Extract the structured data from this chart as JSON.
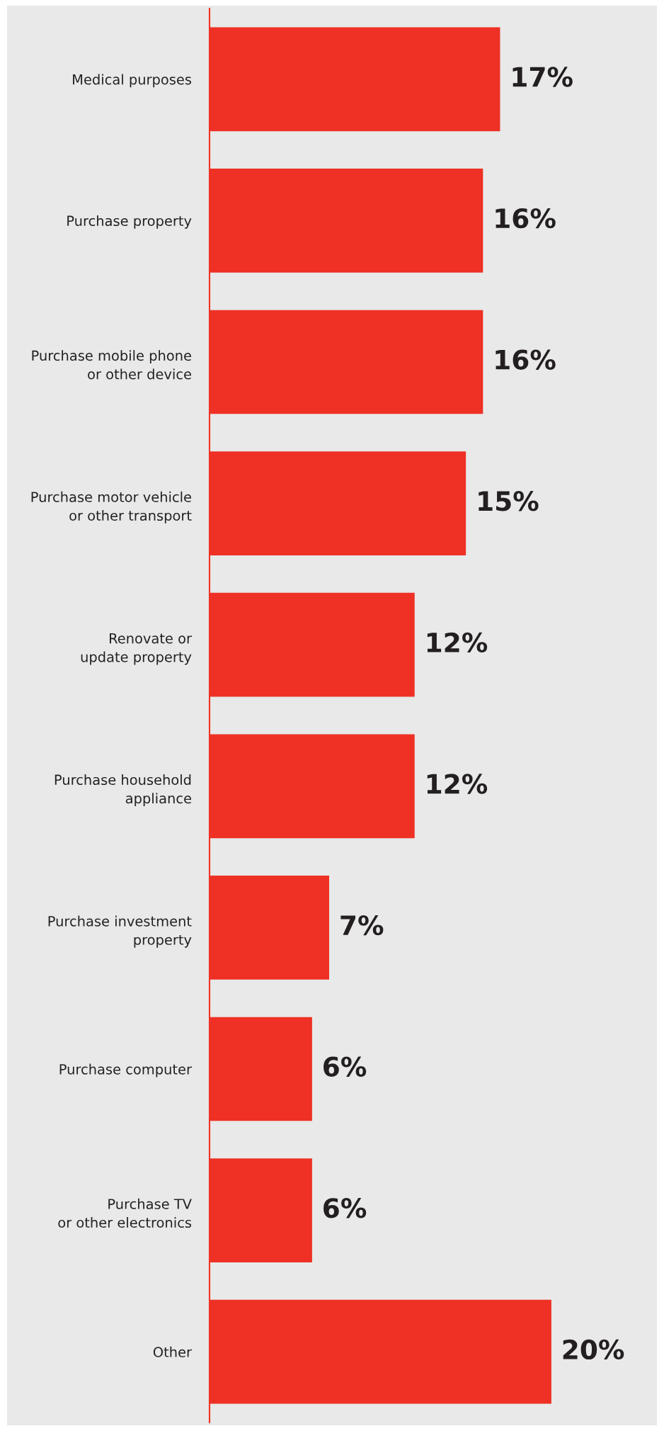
{
  "chart_data": {
    "type": "bar",
    "orientation": "horizontal",
    "categories": [
      "Medical purposes",
      "Purchase property",
      "Purchase mobile phone\nor other device",
      "Purchase motor vehicle\nor other transport",
      "Renovate or\nupdate property",
      "Purchase household\nappliance",
      "Purchase investment\nproperty",
      "Purchase computer",
      "Purchase TV\nor other electronics",
      "Other"
    ],
    "values": [
      17,
      16,
      16,
      15,
      12,
      12,
      7,
      6,
      6,
      20
    ],
    "color": "#ee3124",
    "tick_labels": "y",
    "data_labels": true,
    "value_labels": [
      "17%",
      "16%",
      "16%",
      "15%",
      "12%",
      "12%",
      "7%",
      "6%",
      "6%",
      "20%"
    ],
    "grid": false,
    "legend": false
  }
}
